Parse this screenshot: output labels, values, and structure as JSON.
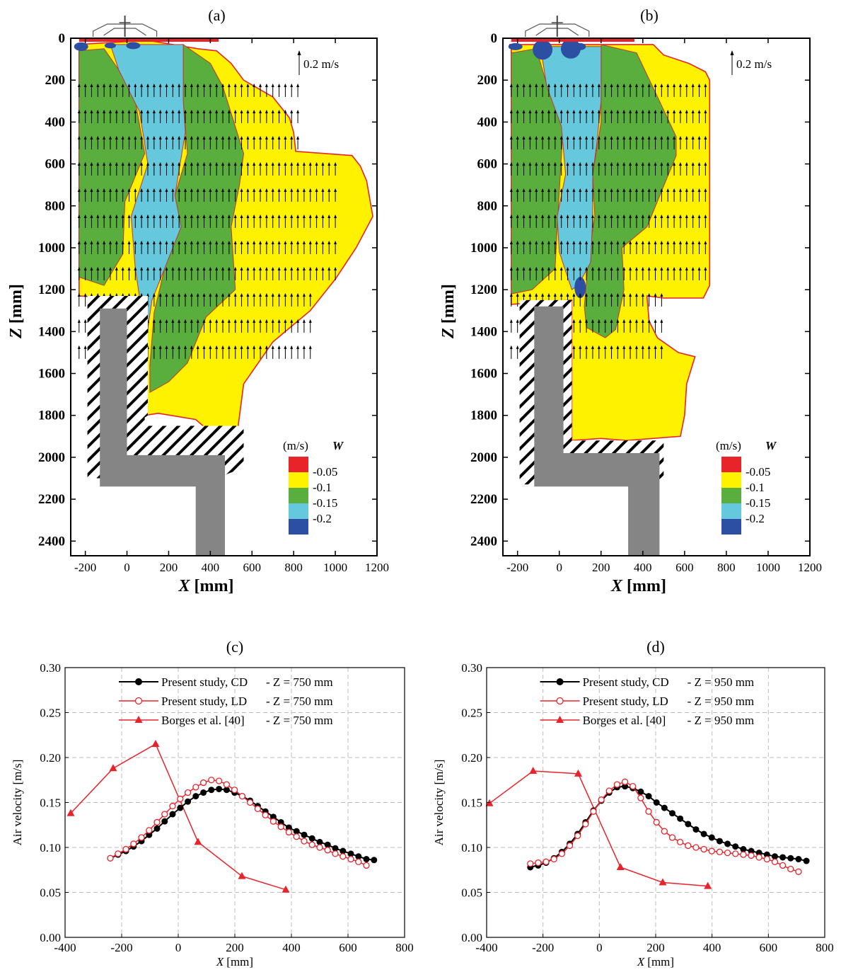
{
  "chart_data": [
    {
      "panel": "(a)",
      "type": "heatmap",
      "xlabel_var": "X",
      "xlabel_unit": "[mm]",
      "ylabel_var": "Z",
      "ylabel_unit": "[mm]",
      "xticks": [
        -200,
        0,
        200,
        400,
        600,
        800,
        1000,
        1200
      ],
      "yticks": [
        0,
        200,
        400,
        600,
        800,
        1000,
        1200,
        1400,
        1600,
        1800,
        2000,
        2200,
        2400
      ],
      "xlim": [
        -270,
        1200
      ],
      "ylim": [
        0,
        2470
      ],
      "vector_reference": "0.2 m/s",
      "legend_unit": "(m/s)",
      "legend_var": "W",
      "levels": [
        {
          "label": "-0.05",
          "color": "#e8232a"
        },
        {
          "label": "-0.1",
          "color": "#fff200"
        },
        {
          "label": "-0.15",
          "color": "#5aae3d"
        },
        {
          "label": "-0.2",
          "color": "#66c8dd"
        },
        {
          "label": "",
          "color": "#2c4ea3"
        }
      ]
    },
    {
      "panel": "(b)",
      "type": "heatmap",
      "xlabel_var": "X",
      "xlabel_unit": "[mm]",
      "ylabel_var": "Z",
      "ylabel_unit": "[mm]",
      "xticks": [
        -200,
        0,
        200,
        400,
        600,
        800,
        1000,
        1200
      ],
      "yticks": [
        0,
        200,
        400,
        600,
        800,
        1000,
        1200,
        1400,
        1600,
        1800,
        2000,
        2200,
        2400
      ],
      "xlim": [
        -270,
        1200
      ],
      "ylim": [
        0,
        2470
      ],
      "vector_reference": "0.2 m/s",
      "legend_unit": "(m/s)",
      "legend_var": "W",
      "levels": [
        {
          "label": "-0.05",
          "color": "#e8232a"
        },
        {
          "label": "-0.1",
          "color": "#fff200"
        },
        {
          "label": "-0.15",
          "color": "#5aae3d"
        },
        {
          "label": "-0.2",
          "color": "#66c8dd"
        },
        {
          "label": "",
          "color": "#2c4ea3"
        }
      ]
    },
    {
      "panel": "(c)",
      "type": "line",
      "xlabel_var": "X",
      "xlabel_unit": "[mm]",
      "ylabel": "Air velocity [m/s]",
      "xlim": [
        -400,
        800
      ],
      "ylim": [
        0,
        0.3
      ],
      "xticks": [
        -400,
        -200,
        0,
        200,
        400,
        600,
        800
      ],
      "yticks": [
        0.0,
        0.05,
        0.1,
        0.15,
        0.2,
        0.25,
        0.3
      ],
      "grid": true,
      "legend_position": "top-right",
      "series": [
        {
          "name": "Present study, CD",
          "cond": "- Z = 750 mm",
          "color": "#000000",
          "marker": "filled-circle",
          "x": [
            -240,
            -213,
            -185,
            -158,
            -130,
            -103,
            -75,
            -48,
            -20,
            7,
            34,
            62,
            89,
            117,
            144,
            171,
            199,
            226,
            254,
            281,
            308,
            336,
            363,
            391,
            418,
            445,
            473,
            500,
            528,
            555,
            582,
            610,
            637,
            665,
            692
          ],
          "y": [
            0.088,
            0.092,
            0.096,
            0.101,
            0.107,
            0.114,
            0.121,
            0.129,
            0.137,
            0.144,
            0.151,
            0.157,
            0.161,
            0.164,
            0.165,
            0.164,
            0.161,
            0.157,
            0.152,
            0.146,
            0.14,
            0.134,
            0.128,
            0.122,
            0.118,
            0.114,
            0.11,
            0.106,
            0.103,
            0.099,
            0.096,
            0.093,
            0.09,
            0.087,
            0.086
          ]
        },
        {
          "name": "Present study, LD",
          "cond": "- Z = 750 mm",
          "color": "#e8232a",
          "marker": "open-circle",
          "x": [
            -240,
            -213,
            -185,
            -158,
            -130,
            -103,
            -75,
            -48,
            -20,
            7,
            34,
            62,
            89,
            117,
            144,
            171,
            199,
            226,
            254,
            281,
            308,
            336,
            363,
            391,
            418,
            445,
            473,
            500,
            528,
            555,
            582,
            610,
            637,
            665
          ],
          "y": [
            0.088,
            0.093,
            0.098,
            0.104,
            0.111,
            0.119,
            0.128,
            0.137,
            0.146,
            0.154,
            0.161,
            0.167,
            0.172,
            0.175,
            0.174,
            0.17,
            0.164,
            0.157,
            0.15,
            0.143,
            0.136,
            0.129,
            0.123,
            0.117,
            0.112,
            0.107,
            0.103,
            0.1,
            0.097,
            0.093,
            0.09,
            0.087,
            0.084,
            0.08
          ]
        },
        {
          "name": "Borges et al. [40]",
          "cond": "- Z = 750 mm",
          "color": "#e8232a",
          "marker": "filled-triangle",
          "x": [
            -380,
            -230,
            -80,
            70,
            225,
            380
          ],
          "y": [
            0.138,
            0.188,
            0.215,
            0.106,
            0.068,
            0.053
          ]
        }
      ]
    },
    {
      "panel": "(d)",
      "type": "line",
      "xlabel_var": "X",
      "xlabel_unit": "[mm]",
      "ylabel": "Air velocity [m/s]",
      "xlim": [
        -400,
        800
      ],
      "ylim": [
        0,
        0.3
      ],
      "xticks": [
        -400,
        -200,
        0,
        200,
        400,
        600,
        800
      ],
      "yticks": [
        0.0,
        0.05,
        0.1,
        0.15,
        0.2,
        0.25,
        0.3
      ],
      "grid": true,
      "legend_position": "top-right",
      "series": [
        {
          "name": "Present study, CD",
          "cond": "- Z = 950 mm",
          "color": "#000000",
          "marker": "filled-circle",
          "x": [
            -245,
            -217,
            -189,
            -161,
            -133,
            -105,
            -77,
            -49,
            -21,
            7,
            35,
            63,
            91,
            119,
            147,
            175,
            203,
            231,
            259,
            287,
            315,
            343,
            371,
            399,
            427,
            455,
            483,
            511,
            539,
            567,
            595,
            623,
            651,
            679,
            707,
            735
          ],
          "y": [
            0.078,
            0.08,
            0.083,
            0.088,
            0.095,
            0.104,
            0.115,
            0.128,
            0.141,
            0.152,
            0.161,
            0.167,
            0.168,
            0.166,
            0.162,
            0.157,
            0.15,
            0.144,
            0.138,
            0.132,
            0.126,
            0.12,
            0.115,
            0.111,
            0.107,
            0.104,
            0.101,
            0.098,
            0.096,
            0.094,
            0.092,
            0.09,
            0.089,
            0.088,
            0.087,
            0.085
          ]
        },
        {
          "name": "Present study, LD",
          "cond": "- Z = 950 mm",
          "color": "#e8232a",
          "marker": "open-circle",
          "x": [
            -245,
            -217,
            -189,
            -161,
            -133,
            -105,
            -77,
            -49,
            -21,
            7,
            35,
            63,
            91,
            119,
            147,
            175,
            203,
            231,
            259,
            287,
            315,
            343,
            371,
            399,
            427,
            455,
            483,
            511,
            539,
            567,
            595,
            623,
            651,
            679,
            707
          ],
          "y": [
            0.082,
            0.083,
            0.084,
            0.087,
            0.093,
            0.102,
            0.113,
            0.126,
            0.14,
            0.153,
            0.163,
            0.17,
            0.173,
            0.168,
            0.155,
            0.14,
            0.128,
            0.118,
            0.111,
            0.106,
            0.102,
            0.1,
            0.098,
            0.096,
            0.095,
            0.094,
            0.093,
            0.092,
            0.091,
            0.089,
            0.087,
            0.084,
            0.08,
            0.076,
            0.073
          ]
        },
        {
          "name": "Borges et al. [40]",
          "cond": "- Z = 950 mm",
          "color": "#e8232a",
          "marker": "filled-triangle",
          "x": [
            -390,
            -235,
            -75,
            75,
            225,
            385
          ],
          "y": [
            0.149,
            0.185,
            0.182,
            0.078,
            0.061,
            0.057
          ]
        }
      ]
    }
  ]
}
